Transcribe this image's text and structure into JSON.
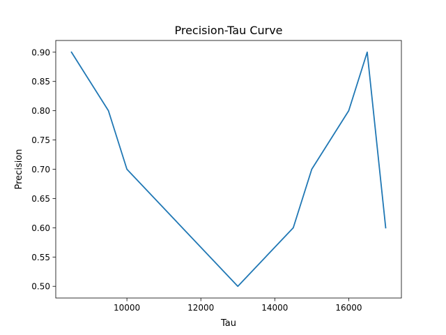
{
  "chart_data": {
    "type": "line",
    "title": "Precision-Tau Curve",
    "xlabel": "Tau",
    "ylabel": "Precision",
    "xlim": [
      8075,
      17425
    ],
    "ylim": [
      0.48,
      0.92
    ],
    "xticks": [
      10000,
      12000,
      14000,
      16000
    ],
    "xtick_labels": [
      "10000",
      "12000",
      "14000",
      "16000"
    ],
    "yticks": [
      0.5,
      0.55,
      0.6,
      0.65,
      0.7,
      0.75,
      0.8,
      0.85,
      0.9
    ],
    "ytick_labels": [
      "0.50",
      "0.55",
      "0.60",
      "0.65",
      "0.70",
      "0.75",
      "0.80",
      "0.85",
      "0.90"
    ],
    "grid": false,
    "color": "#1f77b4",
    "series": [
      {
        "x": [
          8500,
          9500,
          10000,
          13000,
          14500,
          15000,
          16000,
          16500,
          17000
        ],
        "values": [
          0.9,
          0.8,
          0.7,
          0.5,
          0.6,
          0.7,
          0.8,
          0.9,
          0.6
        ]
      }
    ]
  }
}
